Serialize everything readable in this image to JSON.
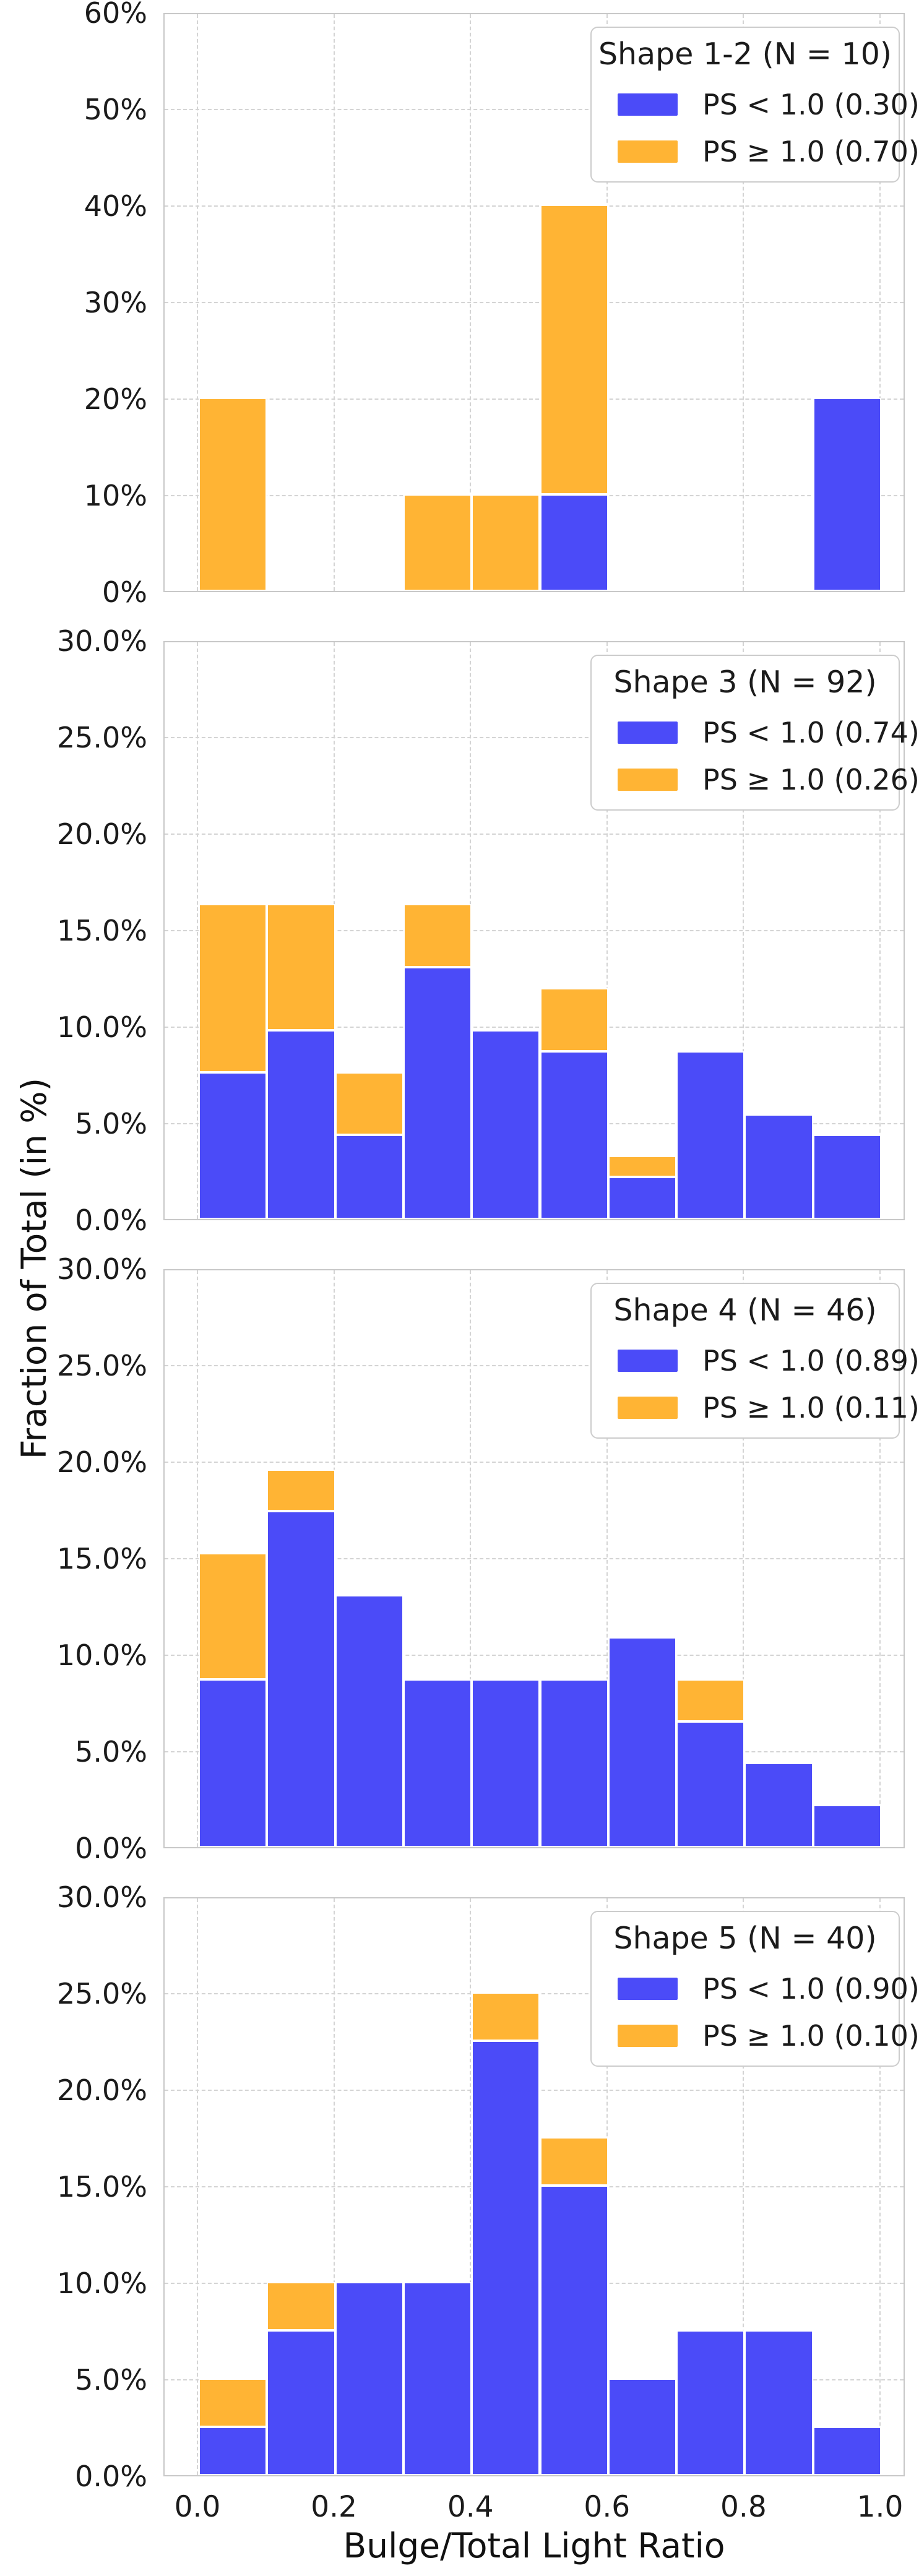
{
  "xlabel": "Bulge/Total Light Ratio",
  "ylabel": "Fraction of Total (in %)",
  "colors": {
    "blue": "#4B4BF8",
    "orange": "#FFB434",
    "grid": "#d4d4d4",
    "frame": "#c8c8c8",
    "text": "#1b1b1b",
    "legend_border": "#cccccc",
    "background": "#ffffff"
  },
  "chart_data": [
    {
      "type": "bar",
      "stacked": true,
      "title": "Shape 1-2 (N = 10)",
      "bin_edges": [
        0.0,
        0.1,
        0.2,
        0.3,
        0.4,
        0.5,
        0.6,
        0.7,
        0.8,
        0.9,
        1.0
      ],
      "series": [
        {
          "name": "PS < 1.0 (0.30)",
          "color_key": "blue",
          "values": [
            0,
            0,
            0,
            0,
            0,
            10,
            0,
            0,
            0,
            20
          ]
        },
        {
          "name": "PS ≥ 1.0 (0.70)",
          "color_key": "orange",
          "values": [
            20,
            0,
            0,
            10,
            10,
            30,
            0,
            0,
            0,
            0
          ]
        }
      ],
      "ylim": [
        0,
        60
      ],
      "ytick_step": 10,
      "ytick_labels": [
        "0%",
        "10%",
        "20%",
        "30%",
        "40%",
        "50%",
        "60%"
      ],
      "grid": true,
      "legend_position": "upper right"
    },
    {
      "type": "bar",
      "stacked": true,
      "title": "Shape 3 (N = 92)",
      "bin_edges": [
        0.0,
        0.1,
        0.2,
        0.3,
        0.4,
        0.5,
        0.6,
        0.7,
        0.8,
        0.9,
        1.0
      ],
      "series": [
        {
          "name": "PS < 1.0 (0.74)",
          "color_key": "blue",
          "values": [
            7.61,
            9.78,
            4.35,
            13.04,
            9.78,
            8.7,
            2.17,
            8.7,
            5.43,
            4.35
          ]
        },
        {
          "name": "PS ≥ 1.0 (0.26)",
          "color_key": "orange",
          "values": [
            8.7,
            6.52,
            3.26,
            3.26,
            0,
            3.26,
            1.09,
            0,
            0,
            0
          ]
        }
      ],
      "ylim": [
        0,
        30
      ],
      "ytick_step": 5,
      "ytick_labels": [
        "0.0%",
        "5.0%",
        "10.0%",
        "15.0%",
        "20.0%",
        "25.0%",
        "30.0%"
      ],
      "grid": true,
      "legend_position": "upper right"
    },
    {
      "type": "bar",
      "stacked": true,
      "title": "Shape 4 (N = 46)",
      "bin_edges": [
        0.0,
        0.1,
        0.2,
        0.3,
        0.4,
        0.5,
        0.6,
        0.7,
        0.8,
        0.9,
        1.0
      ],
      "series": [
        {
          "name": "PS < 1.0 (0.89)",
          "color_key": "blue",
          "values": [
            8.7,
            17.39,
            13.04,
            8.7,
            8.7,
            8.7,
            10.87,
            6.52,
            4.35,
            2.17
          ]
        },
        {
          "name": "PS ≥ 1.0 (0.11)",
          "color_key": "orange",
          "values": [
            6.52,
            2.17,
            0,
            0,
            0,
            0,
            0,
            2.17,
            0,
            0
          ]
        }
      ],
      "ylim": [
        0,
        30
      ],
      "ytick_step": 5,
      "ytick_labels": [
        "0.0%",
        "5.0%",
        "10.0%",
        "15.0%",
        "20.0%",
        "25.0%",
        "30.0%"
      ],
      "grid": true,
      "legend_position": "upper right"
    },
    {
      "type": "bar",
      "stacked": true,
      "title": "Shape 5 (N = 40)",
      "bin_edges": [
        0.0,
        0.1,
        0.2,
        0.3,
        0.4,
        0.5,
        0.6,
        0.7,
        0.8,
        0.9,
        1.0
      ],
      "series": [
        {
          "name": "PS < 1.0 (0.90)",
          "color_key": "blue",
          "values": [
            2.5,
            7.5,
            10.0,
            10.0,
            22.5,
            15.0,
            5.0,
            7.5,
            7.5,
            2.5
          ]
        },
        {
          "name": "PS ≥ 1.0 (0.10)",
          "color_key": "orange",
          "values": [
            2.5,
            2.5,
            0,
            0,
            2.5,
            2.5,
            0,
            0,
            0,
            0
          ]
        }
      ],
      "ylim": [
        0,
        30
      ],
      "ytick_step": 5,
      "ytick_labels": [
        "0.0%",
        "5.0%",
        "10.0%",
        "15.0%",
        "20.0%",
        "25.0%",
        "30.0%"
      ],
      "grid": true,
      "legend_position": "upper right"
    }
  ],
  "xtick_labels": [
    "0.0",
    "0.2",
    "0.4",
    "0.6",
    "0.8",
    "1.0"
  ]
}
